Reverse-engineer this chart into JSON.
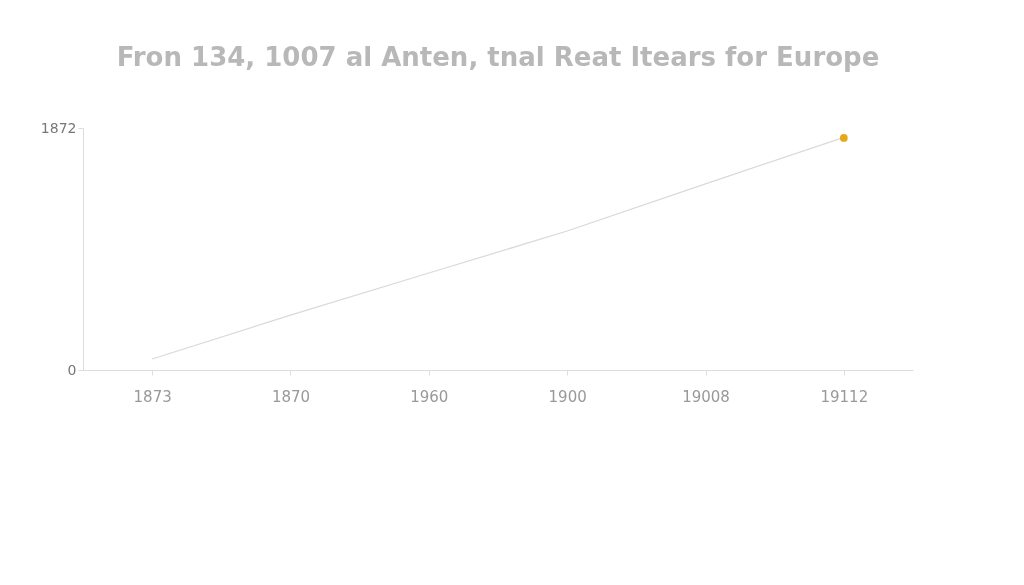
{
  "chart_data": {
    "type": "line",
    "title": "Fron 134, 1007 al Anten, tnal Reat Itears for Europe",
    "categories": [
      "1873",
      "1870",
      "1960",
      "1900",
      "19008",
      "19112"
    ],
    "series": [
      {
        "color": "#d9d9d9",
        "marker": "none",
        "values": [
          85,
          425,
          750,
          1075,
          1440,
          1800
        ]
      },
      {
        "type": "scatter",
        "color": "#e6a817",
        "x": [
          "19112"
        ],
        "values": [
          1795
        ]
      }
    ],
    "ylim": [
      0,
      1872
    ],
    "yticks": [
      0,
      1872
    ]
  }
}
